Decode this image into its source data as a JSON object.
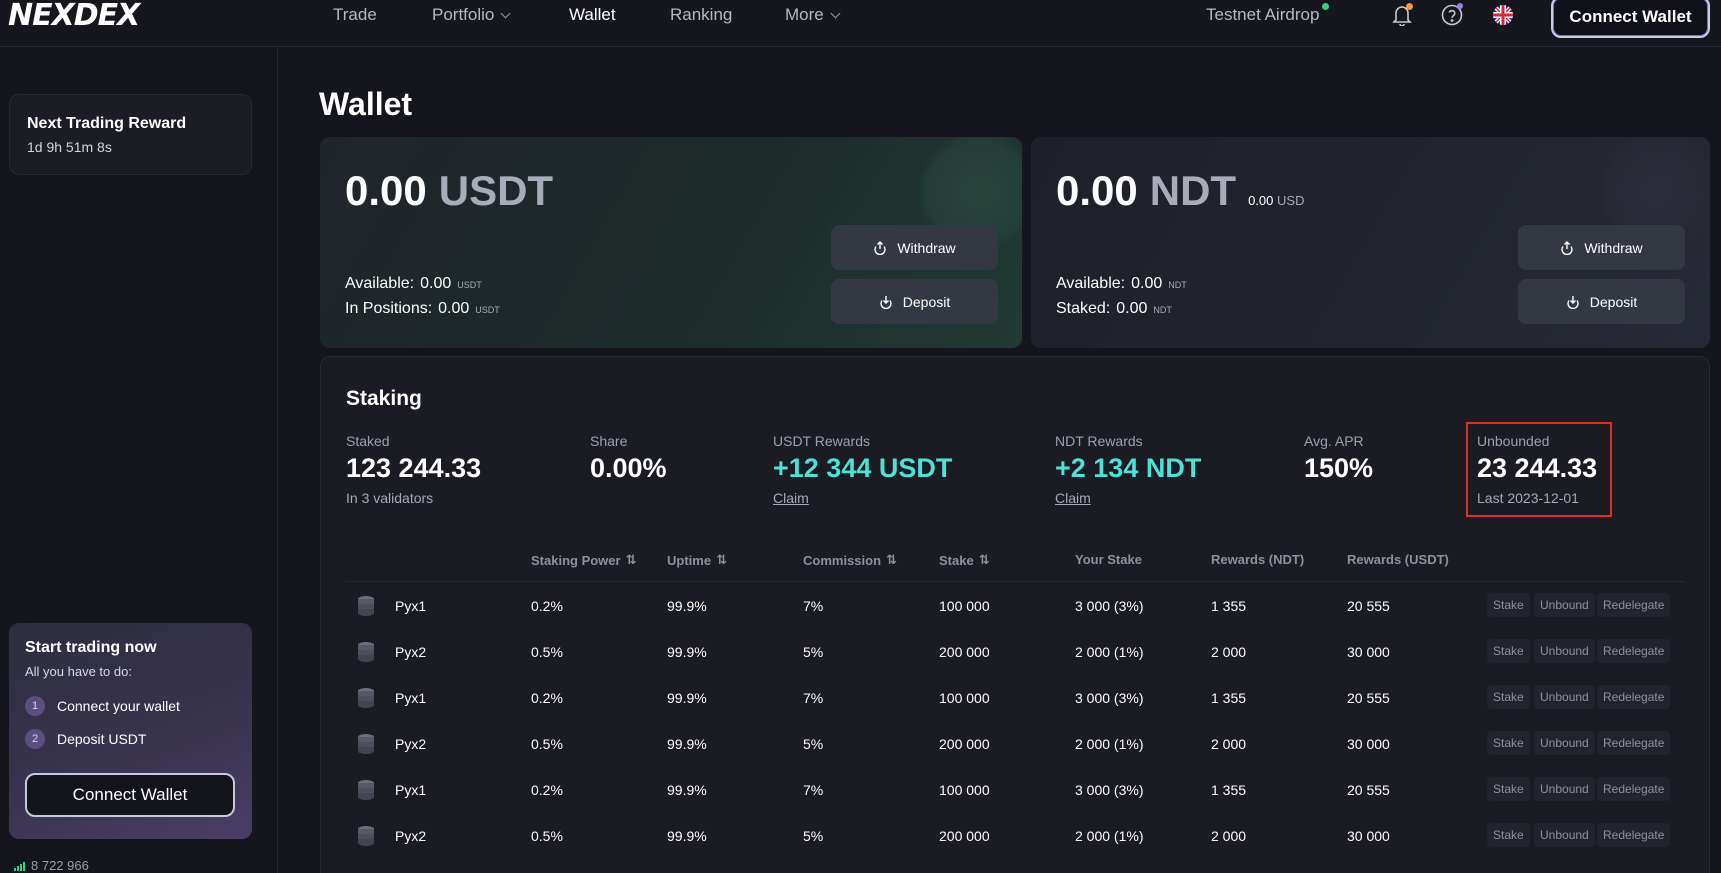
{
  "nav": {
    "logo": "NEXDEX",
    "items": [
      {
        "label": "Trade"
      },
      {
        "label": "Portfolio"
      },
      {
        "label": "Wallet"
      },
      {
        "label": "Ranking"
      },
      {
        "label": "More"
      }
    ],
    "airdrop": "Testnet Airdrop",
    "connect_wallet": "Connect Wallet",
    "icons": [
      "bell-icon",
      "help-icon",
      "uk-flag-icon"
    ]
  },
  "sidebar": {
    "reward_title": "Next Trading Reward",
    "reward_timer": "1d 9h 51m 8s",
    "start_title": "Start trading now",
    "start_sub": "All you have to do:",
    "steps": [
      {
        "num": "1",
        "label": "Connect your wallet"
      },
      {
        "num": "2",
        "label": "Deposit USDT"
      }
    ],
    "connect_wallet": "Connect Wallet",
    "block_height": "8 722 966"
  },
  "main": {
    "title": "Wallet",
    "usdt_card": {
      "amount": "0.00",
      "currency": "USDT",
      "available_label": "Available:",
      "available_value": "0.00",
      "available_unit": "USDT",
      "positions_label": "In Positions:",
      "positions_value": "0.00",
      "positions_unit": "USDT",
      "withdraw": "Withdraw",
      "deposit": "Deposit"
    },
    "ndt_card": {
      "amount": "0.00",
      "currency": "NDT",
      "usd_value": "0.00",
      "usd_unit": "USD",
      "available_label": "Available:",
      "available_value": "0.00",
      "available_unit": "NDT",
      "staked_label": "Staked:",
      "staked_value": "0.00",
      "staked_unit": "NDT",
      "withdraw": "Withdraw",
      "deposit": "Deposit"
    }
  },
  "staking": {
    "title": "Staking",
    "stats": [
      {
        "label": "Staked",
        "value": "123 244.33",
        "sub": "In 3 validators"
      },
      {
        "label": "Share",
        "value": "0.00%"
      },
      {
        "label": "USDT Rewards",
        "value": "+12 344 USDT",
        "sub": "Claim"
      },
      {
        "label": "NDT Rewards",
        "value": "+2 134 NDT",
        "sub": "Claim"
      },
      {
        "label": "Avg. APR",
        "value": "150%"
      },
      {
        "label": "Unbounded",
        "value": "23 244.33",
        "sub": "Last 2023-12-01"
      }
    ],
    "columns": [
      "Staking Power",
      "Uptime",
      "Commission",
      "Stake",
      "Your Stake",
      "Rewards (NDT)",
      "Rewards (USDT)"
    ],
    "actions": [
      "Stake",
      "Unbound",
      "Redelegate"
    ],
    "rows": [
      {
        "name": "Pyx1",
        "power": "0.2%",
        "uptime": "99.9%",
        "commission": "7%",
        "stake": "100 000",
        "your_stake": "3 000 (3%)",
        "rewards_ndt": "1 355",
        "rewards_usdt": "20 555"
      },
      {
        "name": "Pyx2",
        "power": "0.5%",
        "uptime": "99.9%",
        "commission": "5%",
        "stake": "200 000",
        "your_stake": "2 000 (1%)",
        "rewards_ndt": "2 000",
        "rewards_usdt": "30 000"
      },
      {
        "name": "Pyx1",
        "power": "0.2%",
        "uptime": "99.9%",
        "commission": "7%",
        "stake": "100 000",
        "your_stake": "3 000 (3%)",
        "rewards_ndt": "1 355",
        "rewards_usdt": "20 555"
      },
      {
        "name": "Pyx2",
        "power": "0.5%",
        "uptime": "99.9%",
        "commission": "5%",
        "stake": "200 000",
        "your_stake": "2 000 (1%)",
        "rewards_ndt": "2 000",
        "rewards_usdt": "30 000"
      },
      {
        "name": "Pyx1",
        "power": "0.2%",
        "uptime": "99.9%",
        "commission": "7%",
        "stake": "100 000",
        "your_stake": "3 000 (3%)",
        "rewards_ndt": "1 355",
        "rewards_usdt": "20 555"
      },
      {
        "name": "Pyx2",
        "power": "0.5%",
        "uptime": "99.9%",
        "commission": "5%",
        "stake": "200 000",
        "your_stake": "2 000 (1%)",
        "rewards_ndt": "2 000",
        "rewards_usdt": "30 000"
      }
    ]
  },
  "colors": {
    "accent_cyan": "#4fe0d6",
    "highlight_red": "#e2301f",
    "online_green": "#35d07f"
  }
}
